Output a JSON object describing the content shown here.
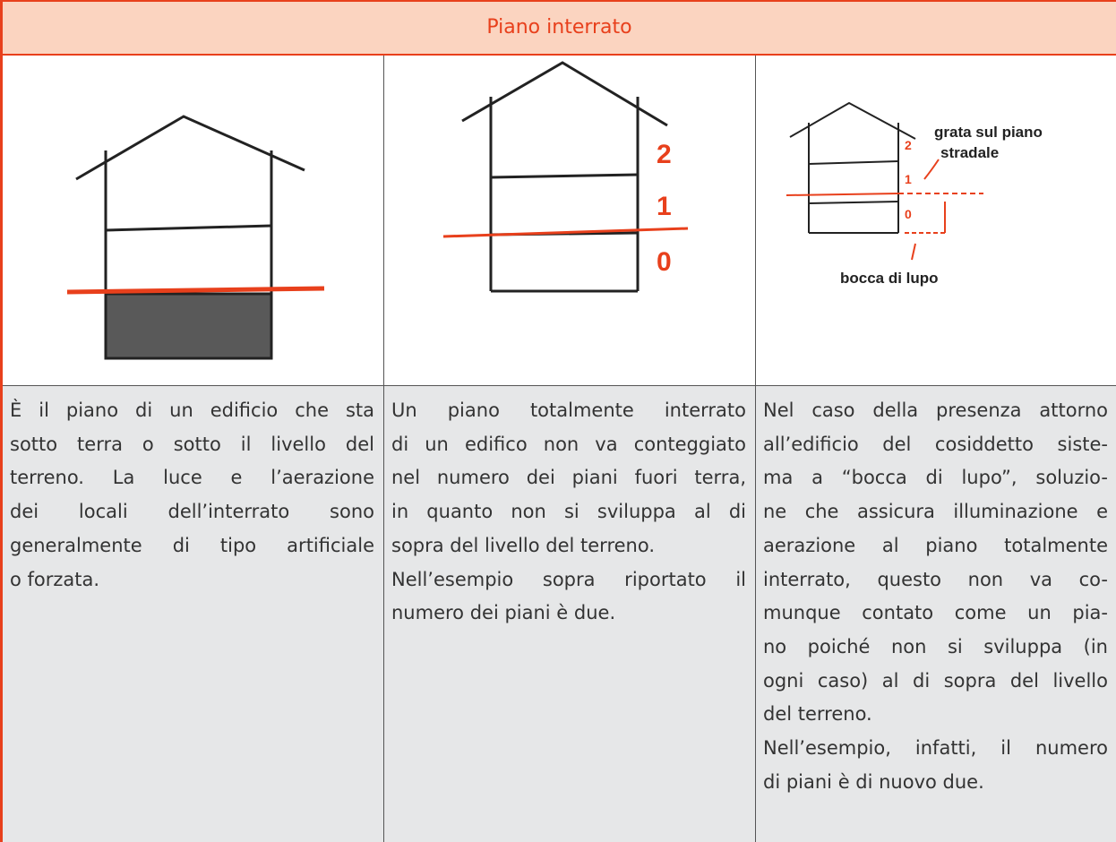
{
  "title": "Piano interrato",
  "columns": [
    {
      "paragraphs": [
        [
          "È il piano di un edificio che sta",
          "sotto terra o sotto il livello del",
          "terreno. La luce e l’aerazione",
          "dei locali dell’interrato sono",
          "generalmente di tipo artificiale",
          "o forzata."
        ]
      ]
    },
    {
      "diagram": {
        "labels": [
          "2",
          "1",
          "0"
        ]
      },
      "paragraphs": [
        [
          "Un piano totalmente interrato",
          "di un edifico non va conteggiato",
          "nel numero dei piani fuori terra,",
          "in quanto non si sviluppa al di",
          "sopra del livello del terreno."
        ],
        [
          "Nell’esempio sopra riportato il",
          "numero dei piani è due."
        ]
      ]
    },
    {
      "diagram": {
        "labels": [
          "2",
          "1",
          "0",
          "grata sul piano",
          "stradale",
          "bocca di lupo"
        ]
      },
      "paragraphs": [
        [
          "Nel caso della presenza attorno",
          "all’edificio del cosiddetto siste-",
          "ma a “bocca di lupo”, soluzio-",
          "ne che assicura illuminazione e",
          "aerazione al piano totalmente",
          "interrato, questo non va co-",
          "munque contato come un pia-",
          "no poiché non si sviluppa (in",
          "ogni caso) al di sopra del livello",
          "del terreno."
        ],
        [
          "Nell’esempio, infatti, il numero",
          "di piani è di nuovo due."
        ]
      ]
    }
  ]
}
